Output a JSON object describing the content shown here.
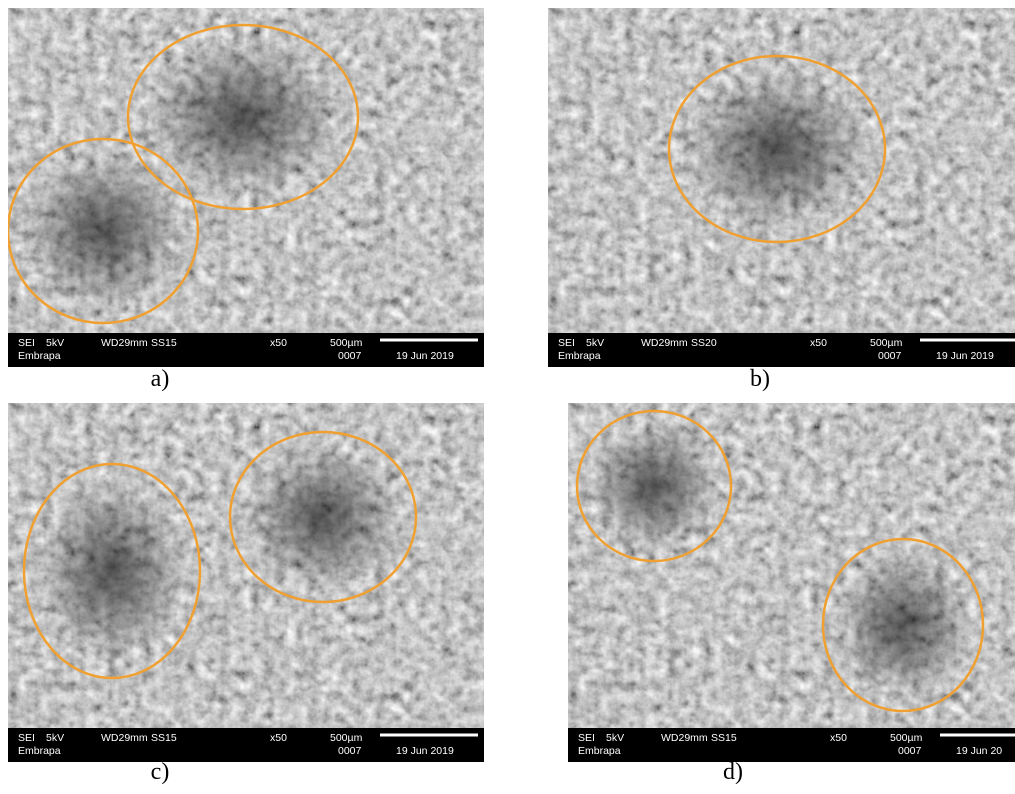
{
  "panels": [
    {
      "label": "a)",
      "info": {
        "detector": "SEI",
        "voltage": "5kV",
        "wd": "WD29mm",
        "spot": "SS15",
        "mag": "x50",
        "scale": "500µm",
        "company": "Embrapa",
        "number": "0007",
        "date": "19 Jun 2019"
      }
    },
    {
      "label": "b)",
      "info": {
        "detector": "SEI",
        "voltage": "5kV",
        "wd": "WD29mm",
        "spot": "SS20",
        "mag": "x50",
        "scale": "500µm",
        "company": "Embrapa",
        "number": "0007",
        "date": "19 Jun 2019"
      }
    },
    {
      "label": "c)",
      "info": {
        "detector": "SEI",
        "voltage": "5kV",
        "wd": "WD29mm",
        "spot": "SS15",
        "mag": "x50",
        "scale": "500µm",
        "company": "Embrapa",
        "number": "0007",
        "date": "19 Jun 2019"
      }
    },
    {
      "label": "d)",
      "info": {
        "detector": "SEI",
        "voltage": "5kV",
        "wd": "WD29mm",
        "spot": "SS15",
        "mag": "x50",
        "scale": "500µm",
        "company": "Embrapa",
        "number": "0007",
        "date": "19 Jun 20"
      }
    }
  ]
}
